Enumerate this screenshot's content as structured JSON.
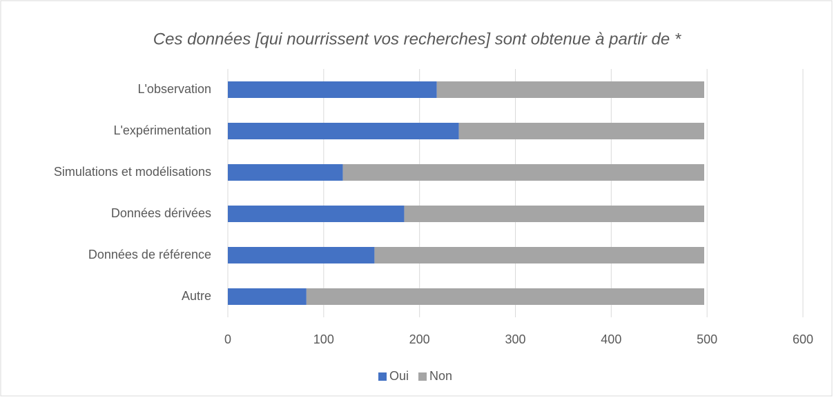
{
  "chart_data": {
    "type": "stacked-barh",
    "title": "Ces données [qui nourrissent vos recherches] sont obtenue à partir de *",
    "categories": [
      "L'observation",
      "L'expérimentation",
      "Simulations et modélisations",
      "Données dérivées",
      "Données de référence",
      "Autre"
    ],
    "series": [
      {
        "name": "Oui",
        "color": "#4472c4",
        "values": [
          218,
          241,
          120,
          184,
          153,
          82
        ]
      },
      {
        "name": "Non",
        "color": "#a5a5a5",
        "values": [
          279,
          256,
          377,
          313,
          344,
          415
        ]
      }
    ],
    "xlim": [
      0,
      600
    ],
    "xticks": [
      0,
      100,
      200,
      300,
      400,
      500,
      600
    ],
    "grid": true,
    "legend": "bottom"
  }
}
